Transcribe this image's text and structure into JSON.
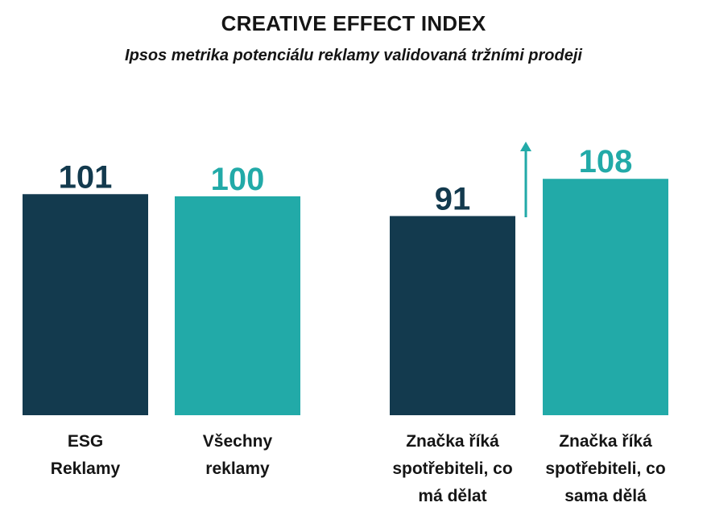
{
  "chart_data": {
    "type": "bar",
    "title": "CREATIVE EFFECT INDEX",
    "subtitle": "Ipsos metrika potenciálu reklamy validovaná tržními prodeji",
    "xlabel": "",
    "ylabel": "",
    "ylim": [
      0,
      108
    ],
    "grid": false,
    "legend": "none",
    "categories": [
      "ESG\nReklamy",
      "Všechny\nreklamy",
      "Značka říká\nspotřebiteli, co\nmá dělat",
      "Značka říká\nspotřebiteli, co\nsama dělá"
    ],
    "values": [
      101,
      100,
      91,
      108
    ],
    "value_labels": [
      "101",
      "100",
      "91",
      "108"
    ],
    "colors": [
      "#133a4e",
      "#22aaa8",
      "#133a4e",
      "#22aaa8"
    ],
    "annotation": "up-arrow-icon"
  }
}
